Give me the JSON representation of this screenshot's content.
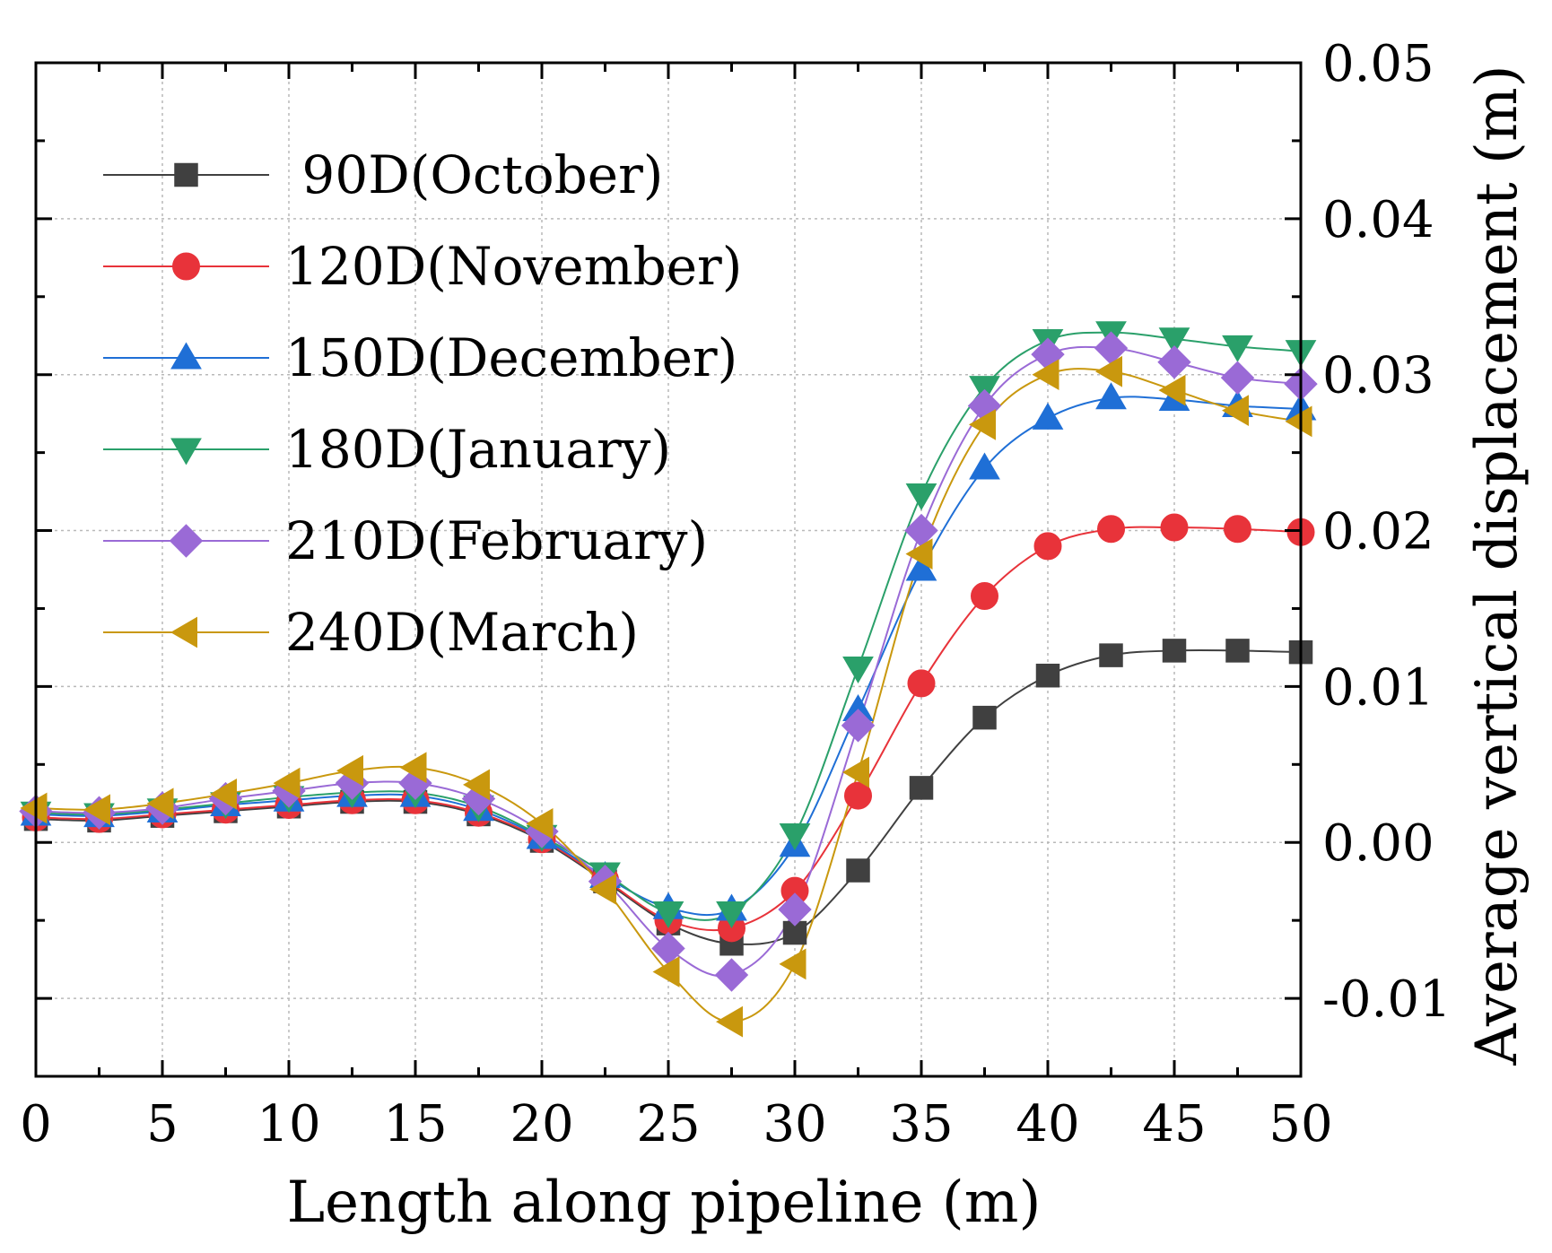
{
  "chart_data": {
    "type": "line",
    "title": "",
    "xlabel": "Length along pipeline (m)",
    "ylabel": "Average vertical displacement (m)",
    "xlim": [
      0,
      50
    ],
    "ylim": [
      -0.015,
      0.05
    ],
    "xticks": [
      0,
      5,
      10,
      15,
      20,
      25,
      30,
      35,
      40,
      45,
      50
    ],
    "xtick_labels": [
      "0",
      "5",
      "10",
      "15",
      "20",
      "25",
      "30",
      "35",
      "40",
      "45",
      "50"
    ],
    "yticks": [
      -0.01,
      0.0,
      0.01,
      0.02,
      0.03,
      0.04,
      0.05
    ],
    "ytick_labels": [
      "-0.01",
      "0.00",
      "0.01",
      "0.02",
      "0.03",
      "0.04",
      "0.05"
    ],
    "y_axis_side": "right",
    "grid": true,
    "legend_position": "top-left",
    "x": [
      0,
      2.5,
      5,
      7.5,
      10,
      12.5,
      15,
      17.5,
      20,
      22.5,
      25,
      27.5,
      30,
      32.5,
      35,
      37.5,
      40,
      42.5,
      45,
      47.5,
      50
    ],
    "series": [
      {
        "name": " 90D(October)",
        "color": "#404040",
        "marker": "square",
        "values": [
          0.0015,
          0.0014,
          0.0017,
          0.002,
          0.0023,
          0.0026,
          0.0026,
          0.0018,
          0.0001,
          -0.0025,
          -0.0052,
          -0.0065,
          -0.0058,
          -0.0018,
          0.0035,
          0.008,
          0.0107,
          0.012,
          0.0123,
          0.0123,
          0.0122
        ]
      },
      {
        "name": "120D(November)",
        "color": "#e8333a",
        "marker": "circle",
        "values": [
          0.0016,
          0.0015,
          0.0018,
          0.0021,
          0.0024,
          0.0027,
          0.0027,
          0.0019,
          0.0002,
          -0.0024,
          -0.005,
          -0.0055,
          -0.0031,
          0.003,
          0.0102,
          0.0158,
          0.019,
          0.0201,
          0.0202,
          0.0201,
          0.0199
        ]
      },
      {
        "name": "150D(December)",
        "color": "#1f6fd6",
        "marker": "triangle-up",
        "values": [
          0.0018,
          0.0017,
          0.002,
          0.0024,
          0.0027,
          0.003,
          0.003,
          0.0021,
          0.0003,
          -0.0022,
          -0.0042,
          -0.0043,
          -0.0002,
          0.0085,
          0.0175,
          0.024,
          0.0272,
          0.0285,
          0.0284,
          0.028,
          0.0278
        ]
      },
      {
        "name": "180D(January)",
        "color": "#2aa06a",
        "marker": "triangle-down",
        "values": [
          0.0019,
          0.0018,
          0.0021,
          0.0025,
          0.0029,
          0.0032,
          0.0032,
          0.0023,
          0.0004,
          -0.002,
          -0.0045,
          -0.0045,
          0.0005,
          0.0112,
          0.0223,
          0.0292,
          0.0322,
          0.0327,
          0.0323,
          0.0318,
          0.0315
        ]
      },
      {
        "name": "210D(February)",
        "color": "#9a6ad6",
        "marker": "diamond",
        "values": [
          0.002,
          0.0019,
          0.0022,
          0.0028,
          0.0033,
          0.0038,
          0.0038,
          0.0028,
          0.0007,
          -0.0025,
          -0.0068,
          -0.0085,
          -0.0043,
          0.0075,
          0.02,
          0.028,
          0.0313,
          0.0317,
          0.0308,
          0.0298,
          0.0294
        ]
      },
      {
        "name": "240D(March)",
        "color": "#c9980e",
        "marker": "triangle-left",
        "values": [
          0.0022,
          0.0021,
          0.0025,
          0.0031,
          0.0038,
          0.0046,
          0.0048,
          0.0037,
          0.0012,
          -0.003,
          -0.0083,
          -0.0115,
          -0.0078,
          0.0045,
          0.0185,
          0.0268,
          0.03,
          0.0302,
          0.029,
          0.0277,
          0.027
        ]
      }
    ]
  }
}
